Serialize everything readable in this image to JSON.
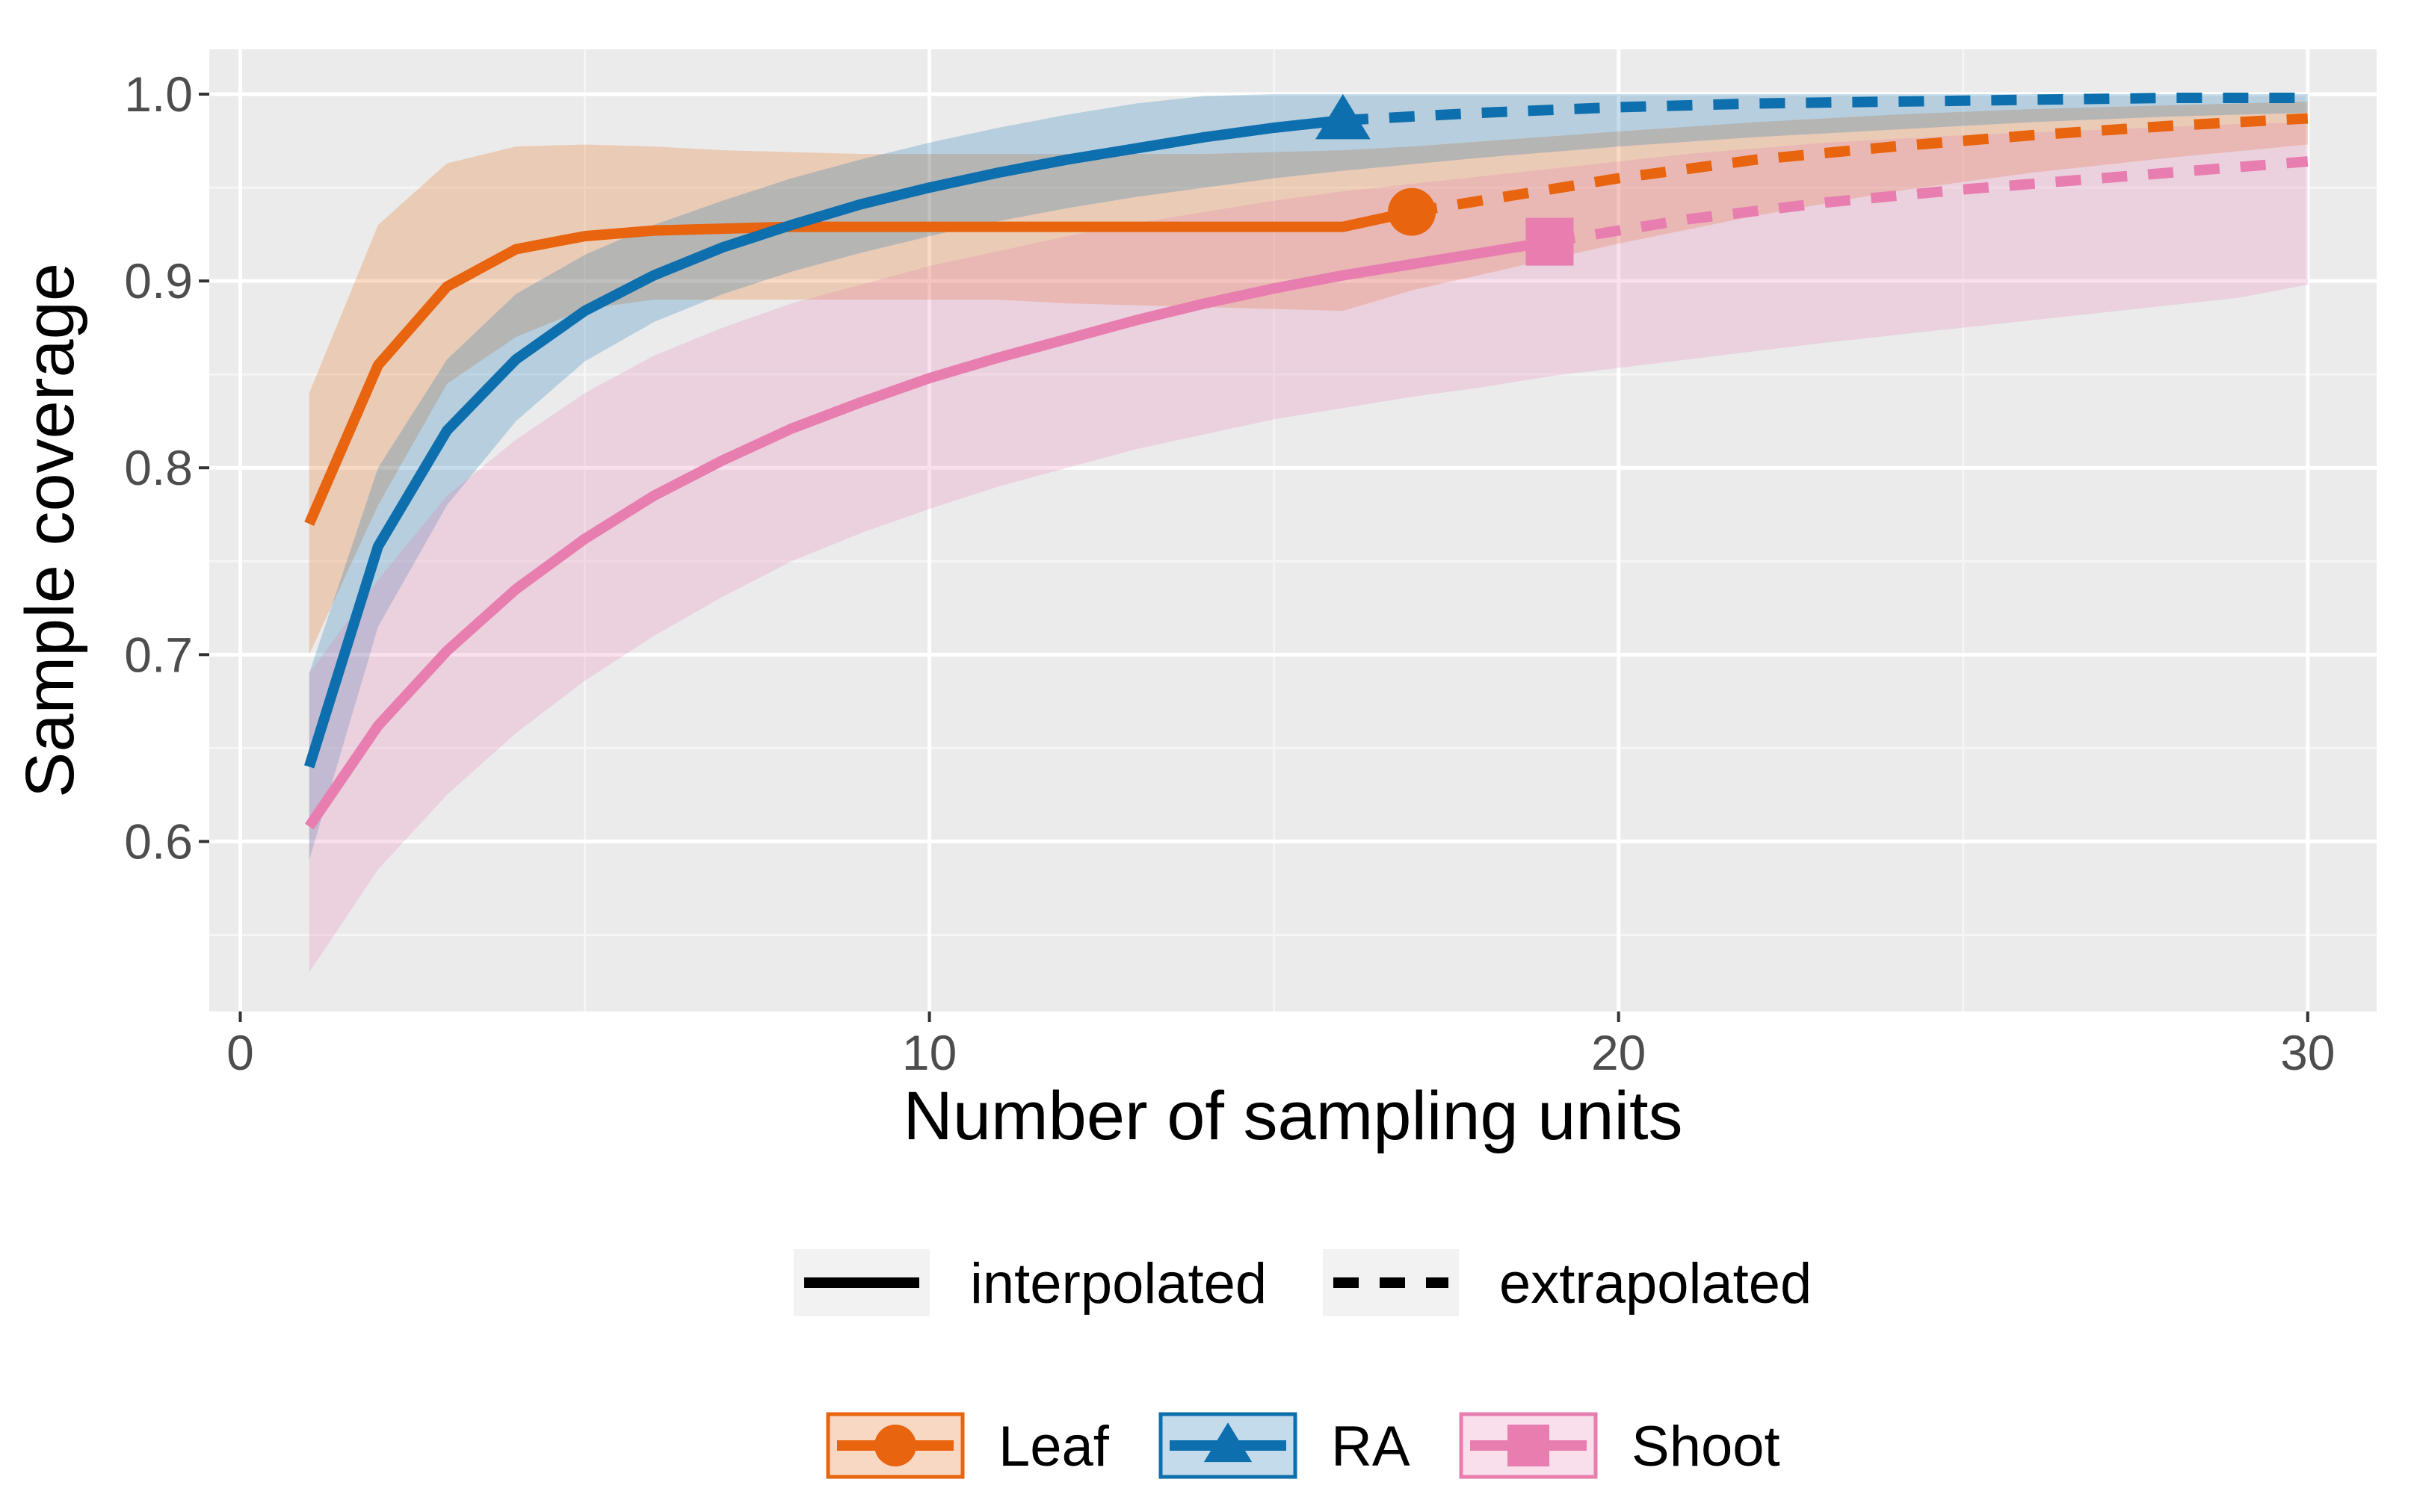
{
  "chart_data": {
    "type": "line",
    "title": "",
    "xlabel": "Number of sampling units",
    "ylabel": "Sample coverage",
    "xlim": [
      -0.45,
      31
    ],
    "ylim": [
      0.509,
      1.024
    ],
    "x_ticks": [
      0,
      10,
      20,
      30
    ],
    "y_ticks": [
      0.6,
      0.7,
      0.8,
      0.9,
      1.0
    ],
    "x_tick_labels": [
      "0",
      "10",
      "20",
      "30"
    ],
    "y_tick_labels": [
      "0.6",
      "0.7",
      "0.8",
      "0.9",
      "1.0"
    ],
    "grid": true,
    "legend_position": "bottom",
    "linetype_legend": [
      {
        "key": "interpolated",
        "label": "interpolated"
      },
      {
        "key": "extrapolated",
        "label": "extrapolated"
      }
    ],
    "series": [
      {
        "name": "Leaf",
        "color": "#E8640E",
        "marker": "circle",
        "observed": {
          "x": 17,
          "y": 0.937
        },
        "interpolated": {
          "x": [
            1,
            2,
            3,
            4,
            5,
            6,
            7,
            8,
            9,
            10,
            11,
            12,
            13,
            14,
            15,
            16,
            17
          ],
          "y": [
            0.77,
            0.855,
            0.897,
            0.917,
            0.924,
            0.927,
            0.928,
            0.929,
            0.929,
            0.929,
            0.929,
            0.929,
            0.929,
            0.929,
            0.929,
            0.929,
            0.937
          ],
          "lower": [
            0.7,
            0.78,
            0.845,
            0.87,
            0.885,
            0.89,
            0.89,
            0.89,
            0.89,
            0.89,
            0.89,
            0.888,
            0.887,
            0.886,
            0.885,
            0.884,
            0.895
          ],
          "upper": [
            0.84,
            0.93,
            0.963,
            0.972,
            0.973,
            0.972,
            0.97,
            0.969,
            0.968,
            0.968,
            0.968,
            0.968,
            0.968,
            0.968,
            0.969,
            0.97,
            0.972
          ]
        },
        "extrapolated": {
          "x": [
            17,
            20,
            22,
            24,
            26,
            28,
            30
          ],
          "y": [
            0.937,
            0.955,
            0.965,
            0.972,
            0.978,
            0.983,
            0.987
          ],
          "lower": [
            0.895,
            0.92,
            0.935,
            0.948,
            0.958,
            0.966,
            0.973
          ],
          "upper": [
            0.972,
            0.98,
            0.985,
            0.989,
            0.992,
            0.994,
            0.996
          ]
        }
      },
      {
        "name": "RA",
        "color": "#0E6FAF",
        "marker": "triangle",
        "observed": {
          "x": 16,
          "y": 0.986
        },
        "interpolated": {
          "x": [
            1,
            2,
            3,
            4,
            5,
            6,
            7,
            8,
            9,
            10,
            11,
            12,
            13,
            14,
            15,
            16
          ],
          "y": [
            0.64,
            0.758,
            0.82,
            0.858,
            0.884,
            0.903,
            0.918,
            0.93,
            0.941,
            0.95,
            0.958,
            0.965,
            0.971,
            0.977,
            0.982,
            0.986
          ],
          "lower": [
            0.59,
            0.715,
            0.78,
            0.825,
            0.857,
            0.878,
            0.893,
            0.905,
            0.915,
            0.924,
            0.932,
            0.939,
            0.945,
            0.95,
            0.955,
            0.959
          ],
          "upper": [
            0.69,
            0.8,
            0.858,
            0.893,
            0.914,
            0.93,
            0.943,
            0.955,
            0.965,
            0.974,
            0.982,
            0.989,
            0.995,
            0.999,
            1.0,
            1.0
          ]
        },
        "extrapolated": {
          "x": [
            16,
            18,
            20,
            22,
            24,
            26,
            28,
            30
          ],
          "y": [
            0.986,
            0.99,
            0.993,
            0.995,
            0.996,
            0.997,
            0.998,
            0.998
          ],
          "lower": [
            0.959,
            0.966,
            0.972,
            0.977,
            0.981,
            0.985,
            0.988,
            0.99
          ],
          "upper": [
            1.0,
            1.0,
            1.0,
            1.0,
            1.0,
            1.0,
            1.0,
            1.0
          ]
        }
      },
      {
        "name": "Shoot",
        "color": "#E87EAF",
        "marker": "square",
        "observed": {
          "x": 19,
          "y": 0.921
        },
        "interpolated": {
          "x": [
            1,
            2,
            3,
            4,
            5,
            6,
            7,
            8,
            9,
            10,
            11,
            12,
            13,
            14,
            15,
            16,
            17,
            18,
            19
          ],
          "y": [
            0.608,
            0.662,
            0.702,
            0.735,
            0.762,
            0.785,
            0.804,
            0.821,
            0.835,
            0.848,
            0.859,
            0.869,
            0.879,
            0.888,
            0.896,
            0.903,
            0.909,
            0.915,
            0.921
          ],
          "lower": [
            0.53,
            0.585,
            0.625,
            0.658,
            0.686,
            0.71,
            0.731,
            0.75,
            0.765,
            0.778,
            0.79,
            0.8,
            0.81,
            0.818,
            0.826,
            0.832,
            0.838,
            0.843,
            0.849
          ],
          "upper": [
            0.69,
            0.74,
            0.785,
            0.815,
            0.84,
            0.86,
            0.875,
            0.888,
            0.898,
            0.908,
            0.916,
            0.924,
            0.931,
            0.937,
            0.943,
            0.948,
            0.952,
            0.956,
            0.96
          ]
        },
        "extrapolated": {
          "x": [
            19,
            21,
            23,
            25,
            27,
            29,
            30
          ],
          "y": [
            0.921,
            0.933,
            0.942,
            0.949,
            0.955,
            0.961,
            0.964
          ],
          "lower": [
            0.849,
            0.858,
            0.867,
            0.875,
            0.883,
            0.891,
            0.898
          ],
          "upper": [
            0.96,
            0.968,
            0.974,
            0.978,
            0.981,
            0.984,
            0.985
          ]
        }
      }
    ]
  }
}
